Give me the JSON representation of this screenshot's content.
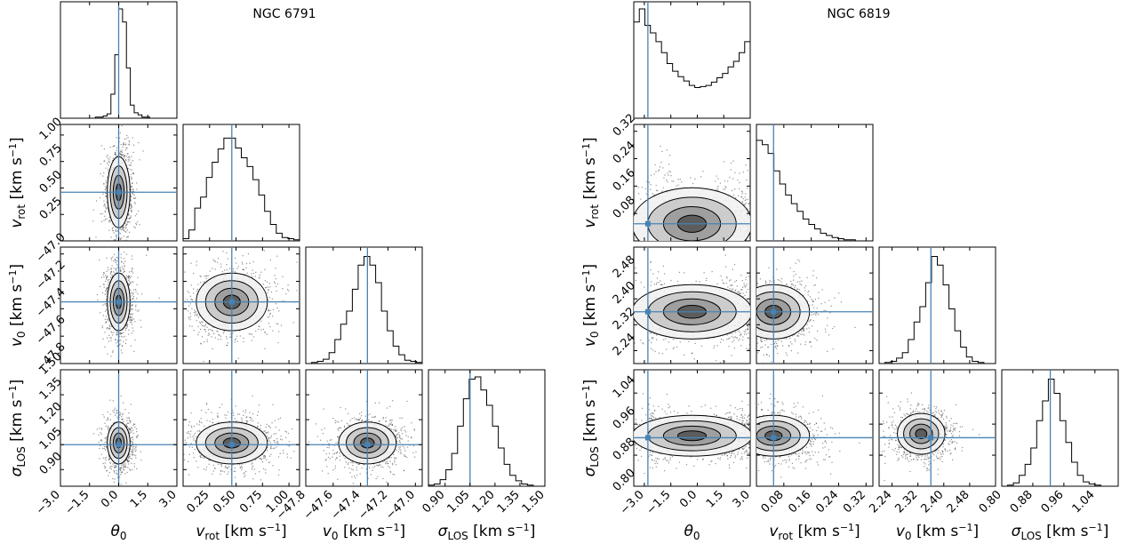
{
  "chart_data": [
    {
      "type": "corner",
      "title": "NGC 6791",
      "parameters": [
        {
          "label": "θ0",
          "range": [
            -3.0,
            3.0
          ],
          "ticks": [
            "−3.0",
            "−1.5",
            "0.0",
            "1.5",
            "3.0"
          ],
          "truth": 0.0
        },
        {
          "label": "vrot [km s−1]",
          "range": [
            0.0,
            1.1
          ],
          "ticks": [
            "0.25",
            "0.50",
            "0.75",
            "1.00"
          ],
          "truth": 0.46
        },
        {
          "label": "v0 [km s−1]",
          "range": [
            -47.8,
            -46.95
          ],
          "ticks": [
            "−47.8",
            "−47.6",
            "−47.4",
            "−47.2",
            "−47.0"
          ],
          "truth": -47.35
        },
        {
          "label": "σLOS [km s−1]",
          "range": [
            0.8,
            1.5
          ],
          "ticks": [
            "0.90",
            "1.05",
            "1.20",
            "1.35",
            "1.50"
          ],
          "truth": 1.05
        }
      ],
      "histograms": [
        {
          "param": "θ0",
          "counts": [
            0,
            0,
            0,
            0,
            0,
            0,
            0,
            0,
            0,
            0.01,
            0.01,
            0.02,
            0.04,
            0.22,
            0.58,
            1.0,
            0.88,
            0.46,
            0.12,
            0.05,
            0.03,
            0.01,
            0.01,
            0,
            0,
            0,
            0,
            0,
            0,
            0
          ]
        },
        {
          "param": "vrot",
          "counts": [
            0.02,
            0.1,
            0.3,
            0.4,
            0.58,
            0.72,
            0.84,
            0.94,
            0.94,
            0.85,
            0.76,
            0.68,
            0.56,
            0.42,
            0.27,
            0.15,
            0.07,
            0.03,
            0.02,
            0.01
          ]
        },
        {
          "param": "v0",
          "counts": [
            0,
            0.01,
            0.02,
            0.04,
            0.1,
            0.22,
            0.36,
            0.48,
            0.68,
            0.9,
            0.98,
            0.9,
            0.74,
            0.48,
            0.3,
            0.16,
            0.08,
            0.03,
            0.02,
            0.01
          ]
        },
        {
          "param": "σLOS",
          "counts": [
            0.01,
            0.02,
            0.06,
            0.15,
            0.3,
            0.55,
            0.8,
            0.98,
            1.0,
            0.88,
            0.74,
            0.55,
            0.35,
            0.2,
            0.1,
            0.05,
            0.02,
            0.01,
            0,
            0
          ]
        }
      ],
      "joint": [
        {
          "x": "θ0",
          "y": "vrot",
          "cx": 0.0,
          "cy": 0.46,
          "sx": 0.28,
          "sy": 0.16,
          "rho": 0
        },
        {
          "x": "θ0",
          "y": "v0",
          "cx": 0.0,
          "cy": -47.35,
          "sx": 0.28,
          "sy": 0.1,
          "rho": 0
        },
        {
          "x": "vrot",
          "y": "v0",
          "cx": 0.46,
          "cy": -47.35,
          "sx": 0.16,
          "sy": 0.1,
          "rho": 0
        },
        {
          "x": "θ0",
          "y": "σLOS",
          "cx": 0.0,
          "cy": 1.06,
          "sx": 0.28,
          "sy": 0.06,
          "rho": 0
        },
        {
          "x": "vrot",
          "y": "σLOS",
          "cx": 0.46,
          "cy": 1.06,
          "sx": 0.16,
          "sy": 0.06,
          "rho": 0
        },
        {
          "x": "v0",
          "y": "σLOS",
          "cx": -47.35,
          "cy": 1.06,
          "sx": 0.1,
          "sy": 0.06,
          "rho": 0
        }
      ]
    },
    {
      "type": "corner",
      "title": "NGC 6819",
      "parameters": [
        {
          "label": "θ0",
          "range": [
            -3.6,
            3.0
          ],
          "ticks": [
            "−3.0",
            "−1.5",
            "0.0",
            "1.5",
            "3.0"
          ],
          "truth": -2.8
        },
        {
          "label": "vrot [km s−1]",
          "range": [
            0.0,
            0.34
          ],
          "ticks": [
            "0.08",
            "0.16",
            "0.24",
            "0.32"
          ],
          "truth": 0.05
        },
        {
          "label": "v0 [km s−1]",
          "range": [
            2.2,
            2.56
          ],
          "ticks": [
            "2.24",
            "2.32",
            "2.40",
            "2.48"
          ],
          "truth": 2.36
        },
        {
          "label": "σLOS [km s−1]",
          "range": [
            0.8,
            1.1
          ],
          "ticks": [
            "0.80",
            "0.88",
            "0.96",
            "1.04"
          ],
          "truth": 0.925
        }
      ],
      "histograms": [
        {
          "param": "θ0",
          "counts": [
            0.88,
            1.0,
            0.85,
            0.78,
            0.7,
            0.6,
            0.5,
            0.43,
            0.38,
            0.34,
            0.3,
            0.28,
            0.29,
            0.3,
            0.33,
            0.37,
            0.41,
            0.47,
            0.52,
            0.6,
            0.7
          ]
        },
        {
          "param": "vrot",
          "counts": [
            0.92,
            0.88,
            0.8,
            0.64,
            0.52,
            0.42,
            0.34,
            0.27,
            0.2,
            0.15,
            0.11,
            0.07,
            0.05,
            0.03,
            0.02,
            0.01,
            0.01,
            0,
            0,
            0
          ]
        },
        {
          "param": "v0",
          "counts": [
            0,
            0.01,
            0.02,
            0.05,
            0.1,
            0.22,
            0.38,
            0.52,
            0.74,
            0.98,
            0.9,
            0.72,
            0.5,
            0.3,
            0.15,
            0.06,
            0.02,
            0.01,
            0,
            0
          ]
        },
        {
          "param": "σLOS",
          "counts": [
            0,
            0.01,
            0.03,
            0.1,
            0.2,
            0.35,
            0.6,
            0.78,
            0.98,
            0.85,
            0.6,
            0.4,
            0.22,
            0.1,
            0.04,
            0.02,
            0.01,
            0,
            0,
            0
          ]
        }
      ],
      "joint": [
        {
          "x": "θ0",
          "y": "vrot",
          "cx": 0.0,
          "cy": 0.05,
          "sx": 3.0,
          "sy": 0.05,
          "rho": 0,
          "bimodal": true
        },
        {
          "x": "θ0",
          "y": "v0",
          "cx": 0.0,
          "cy": 2.36,
          "sx": 3.0,
          "sy": 0.04,
          "rho": 0,
          "bimodal": true
        },
        {
          "x": "vrot",
          "y": "v0",
          "cx": 0.05,
          "cy": 2.36,
          "sx": 0.05,
          "sy": 0.04,
          "rho": 0
        },
        {
          "x": "θ0",
          "y": "σLOS",
          "cx": 0.0,
          "cy": 0.93,
          "sx": 3.0,
          "sy": 0.025,
          "rho": 0,
          "bimodal": true
        },
        {
          "x": "vrot",
          "y": "σLOS",
          "cx": 0.05,
          "cy": 0.93,
          "sx": 0.05,
          "sy": 0.025,
          "rho": 0
        },
        {
          "x": "v0",
          "y": "σLOS",
          "cx": 2.33,
          "cy": 0.935,
          "sx": 0.035,
          "sy": 0.025,
          "rho": 0
        }
      ]
    }
  ],
  "colors": {
    "truth_line": "#4682b4",
    "contour": "#000000",
    "fill": "#808080"
  }
}
